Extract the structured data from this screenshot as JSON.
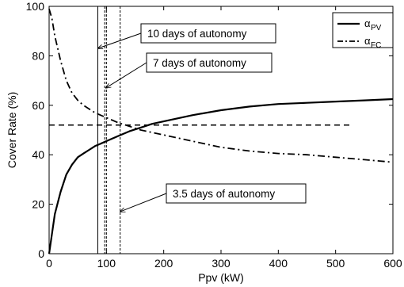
{
  "chart_data": {
    "type": "line",
    "xlabel": "Ppv (kW)",
    "ylabel": "Cover Rate (%)",
    "xlim": [
      0,
      600
    ],
    "ylim": [
      0,
      100
    ],
    "xticks": [
      0,
      100,
      200,
      300,
      400,
      500,
      600
    ],
    "yticks": [
      0,
      20,
      40,
      60,
      80,
      100
    ],
    "grid": false,
    "legend_position": "top-right",
    "series": [
      {
        "name": "α",
        "subscript": "PV",
        "style": "solid",
        "x": [
          0,
          5,
          10,
          20,
          30,
          40,
          50,
          60,
          70,
          80,
          90,
          100,
          120,
          140,
          160,
          180,
          200,
          250,
          300,
          350,
          400,
          450,
          500,
          550,
          600
        ],
        "y": [
          0,
          8,
          16,
          25,
          32,
          36,
          39,
          40.5,
          42,
          43.5,
          44.5,
          45.5,
          47.5,
          49.5,
          51,
          52.5,
          53.5,
          56,
          58,
          59.5,
          60.5,
          61,
          61.5,
          62,
          62.5
        ]
      },
      {
        "name": "α",
        "subscript": "FC",
        "style": "dashdot",
        "x": [
          0,
          5,
          10,
          20,
          30,
          40,
          50,
          60,
          70,
          80,
          90,
          100,
          120,
          140,
          160,
          180,
          200,
          250,
          300,
          350,
          400,
          450,
          500,
          550,
          600
        ],
        "y": [
          99,
          95,
          88,
          78,
          70,
          65,
          62,
          60,
          58.5,
          57,
          56,
          55,
          53,
          51.5,
          50,
          49,
          48,
          45.5,
          43,
          41.5,
          40.5,
          40,
          39,
          38,
          37
        ]
      }
    ],
    "reference_lines": [
      {
        "orientation": "horizontal",
        "style": "dashed",
        "y": 52,
        "x_range": [
          0,
          530
        ]
      },
      {
        "orientation": "vertical",
        "style": "solid",
        "x": 85
      },
      {
        "orientation": "vertical",
        "style": "dashed",
        "x": 97
      },
      {
        "orientation": "vertical",
        "style": "dashed",
        "x": 100
      },
      {
        "orientation": "vertical",
        "style": "dashed",
        "x": 124
      }
    ],
    "annotations": [
      {
        "text": "10 days of autonomy",
        "arrow_to": [
          85,
          83
        ]
      },
      {
        "text": "7 days of autonomy",
        "arrow_to": [
          99,
          67
        ]
      },
      {
        "text": "3.5 days of autonomy",
        "arrow_to": [
          124,
          17
        ]
      }
    ]
  }
}
